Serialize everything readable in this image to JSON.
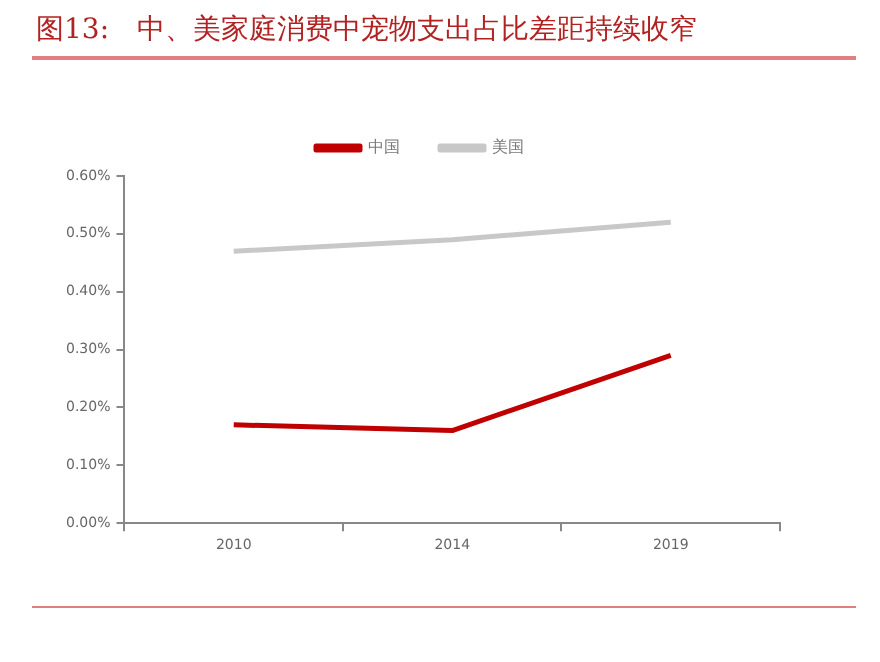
{
  "chart_data": {
    "type": "line",
    "title": "图13:　中、美家庭消费中宠物支出占比差距持续收窄",
    "categories": [
      "2010",
      "2014",
      "2019"
    ],
    "series": [
      {
        "name": "中国",
        "color": "#c00000",
        "values": [
          0.17,
          0.16,
          0.29
        ]
      },
      {
        "name": "美国",
        "color": "#c8c8c8",
        "values": [
          0.47,
          0.49,
          0.52
        ]
      }
    ],
    "ylim": [
      0,
      0.6
    ],
    "yticks": [
      {
        "value": 0,
        "label": "0.00%"
      },
      {
        "value": 0.1,
        "label": "0.10%"
      },
      {
        "value": 0.2,
        "label": "0.20%"
      },
      {
        "value": 0.3,
        "label": "0.30%"
      },
      {
        "value": 0.4,
        "label": "0.40%"
      },
      {
        "value": 0.5,
        "label": "0.50%"
      },
      {
        "value": 0.6,
        "label": "0.60%"
      }
    ],
    "grid": false,
    "legend": "top",
    "marker": "none",
    "line_style": "solid"
  }
}
